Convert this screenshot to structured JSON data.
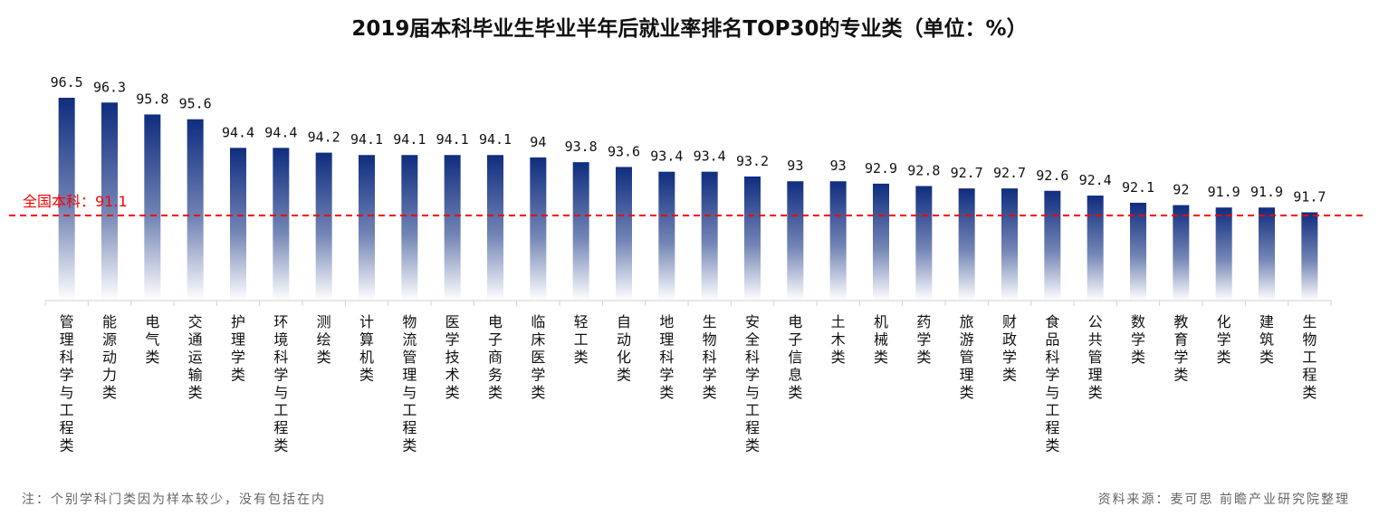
{
  "chart_data": {
    "type": "bar",
    "title": "2019届本科毕业生毕业半年后就业率排名TOP30的专业类（单位：%）",
    "categories": [
      "管理科学与工程类",
      "能源动力类",
      "电气类",
      "交通运输类",
      "护理学类",
      "环境科学与工程类",
      "测绘类",
      "计算机类",
      "物流管理与工程类",
      "医学技术类",
      "电子商务类",
      "临床医学类",
      "轻工类",
      "自动化类",
      "地理科学类",
      "生物科学类",
      "安全科学与工程类",
      "电子信息类",
      "土木类",
      "机械类",
      "药学类",
      "旅游管理类",
      "财政学类",
      "食品科学与工程类",
      "公共管理类",
      "数学类",
      "教育学类",
      "化学类",
      "建筑类",
      "生物工程类"
    ],
    "values": [
      96.5,
      96.3,
      95.8,
      95.6,
      94.4,
      94.4,
      94.2,
      94.1,
      94.1,
      94.1,
      94.1,
      94,
      93.8,
      93.6,
      93.4,
      93.4,
      93.2,
      93,
      93,
      92.9,
      92.8,
      92.7,
      92.7,
      92.6,
      92.4,
      92.1,
      92,
      91.9,
      91.9,
      91.7
    ],
    "ylim": [
      88,
      97
    ],
    "reference_line": {
      "label": "全国本科：91.1",
      "value": 91.1,
      "color": "#ff0000"
    },
    "bar_color_top": "#0f2d7f",
    "grid": false,
    "xlabel": "",
    "ylabel": ""
  },
  "footer": {
    "note": "注：个别学科门类因为样本较少，没有包括在内",
    "source": "资料来源：麦可思 前瞻产业研究院整理"
  }
}
